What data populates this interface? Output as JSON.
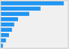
{
  "chart_data": {
    "type": "bar",
    "orientation": "horizontal",
    "values": [
      42.0,
      26.5,
      19.0,
      11.5,
      9.0,
      7.5,
      5.5,
      3.5,
      1.5
    ],
    "color": "#2196f3",
    "xlim": [
      0,
      45
    ],
    "tick_labels": false,
    "grid": false
  }
}
